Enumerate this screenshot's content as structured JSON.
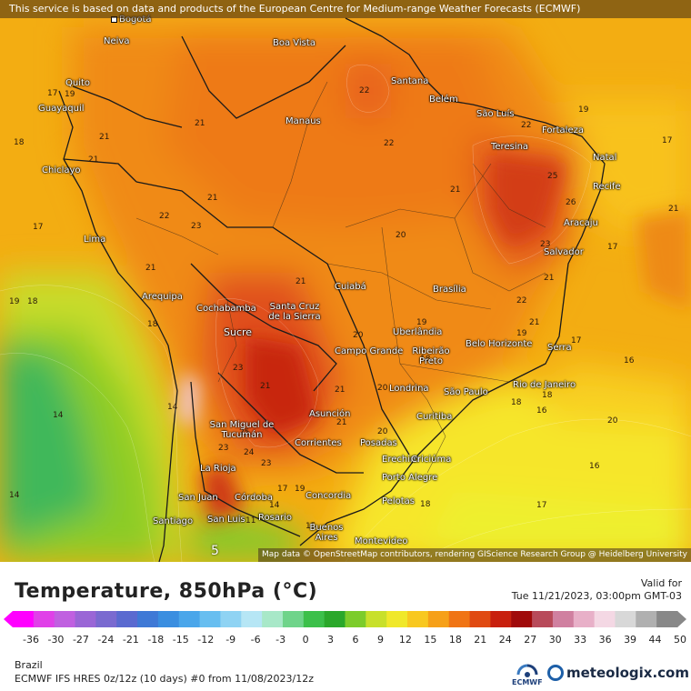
{
  "notice": "This service is based on data and products of the European Centre for Medium-range Weather Forecasts (ECMWF)",
  "attribution": "Map data © OpenStreetMap contributors, rendering GIScience Research Group @ Heidelberg University",
  "title": "Temperature, 850hPa (°C)",
  "valid_label": "Valid for",
  "valid_time": "Tue 11/21/2023, 03:00pm GMT-03",
  "region": "Brazil",
  "model_run": "ECMWF IFS HRES 0z/12z (10 days) #0 from  11/08/2023/12z",
  "logo_ecmwf": "ECMWF",
  "logo_meteologix": "meteologix.com",
  "legend": {
    "ticks": [
      "-36",
      "-30",
      "-27",
      "-24",
      "-21",
      "-18",
      "-15",
      "-12",
      "-9",
      "-6",
      "-3",
      "0",
      "3",
      "6",
      "9",
      "12",
      "15",
      "18",
      "21",
      "24",
      "27",
      "30",
      "33",
      "36",
      "39",
      "44",
      "50"
    ],
    "colors": [
      "#ff00ff",
      "#e040e8",
      "#c060e0",
      "#9a66d6",
      "#7a6ad0",
      "#5a6ad0",
      "#3f79d6",
      "#3a8ee0",
      "#4aa6ea",
      "#67bef0",
      "#8fd3f3",
      "#b6e6f5",
      "#a8e8c8",
      "#6fd48a",
      "#3cc04a",
      "#2aa82a",
      "#7ccc2a",
      "#c8e02a",
      "#f0e82a",
      "#f8c820",
      "#f6a018",
      "#f07414",
      "#e04a12",
      "#c8200e",
      "#a00a0a",
      "#b84a5a",
      "#d080a0",
      "#e8b0c8",
      "#f4d8e4",
      "#d8d8d8",
      "#b0b0b0",
      "#888888"
    ]
  },
  "isotherm_labels": [
    "17",
    "19",
    "21",
    "18",
    "21",
    "21",
    "22",
    "22",
    "19",
    "22",
    "17",
    "21",
    "23",
    "21",
    "22",
    "25",
    "26",
    "21",
    "19",
    "18",
    "18",
    "21",
    "20",
    "17",
    "14",
    "23",
    "23",
    "22",
    "17",
    "21",
    "20",
    "19",
    "21",
    "20",
    "18",
    "18",
    "19",
    "18",
    "14",
    "16",
    "20",
    "25",
    "24",
    "23",
    "17",
    "14",
    "16",
    "18",
    "17",
    "15",
    "11",
    "19",
    "5",
    "14",
    "16",
    "17",
    "21",
    "21",
    "23",
    "21",
    "21",
    "20"
  ],
  "cities": [
    {
      "name": "Bogotá"
    },
    {
      "name": "Neiva"
    },
    {
      "name": "Boa Vista"
    },
    {
      "name": "Quito"
    },
    {
      "name": "Guayaquil"
    },
    {
      "name": "Santana"
    },
    {
      "name": "Belém"
    },
    {
      "name": "São Luís"
    },
    {
      "name": "Manaus"
    },
    {
      "name": "Fortaleza"
    },
    {
      "name": "Teresina"
    },
    {
      "name": "Natal"
    },
    {
      "name": "Chiclayo"
    },
    {
      "name": "Recife"
    },
    {
      "name": "Aracaju"
    },
    {
      "name": "Lima"
    },
    {
      "name": "Salvador"
    },
    {
      "name": "Arequipa"
    },
    {
      "name": "Cuiabá"
    },
    {
      "name": "Brasília"
    },
    {
      "name": "Cochabamba"
    },
    {
      "name": "Santa Cruz de la Sierra"
    },
    {
      "name": "Sucre"
    },
    {
      "name": "Uberlândia"
    },
    {
      "name": "Campo Grande"
    },
    {
      "name": "Ribeirão Preto"
    },
    {
      "name": "Belo Horizonte"
    },
    {
      "name": "Serra"
    },
    {
      "name": "Rio de Janeiro"
    },
    {
      "name": "Londrina"
    },
    {
      "name": "São Paulo"
    },
    {
      "name": "Curitiba"
    },
    {
      "name": "Asunción"
    },
    {
      "name": "San Miguel de Tucumán"
    },
    {
      "name": "Corrientes"
    },
    {
      "name": "Posadas"
    },
    {
      "name": "Erechim"
    },
    {
      "name": "Criciúma"
    },
    {
      "name": "La Rioja"
    },
    {
      "name": "Porto Alegre"
    },
    {
      "name": "San Juan"
    },
    {
      "name": "Córdoba"
    },
    {
      "name": "Concordia"
    },
    {
      "name": "Pelotas"
    },
    {
      "name": "Santiago"
    },
    {
      "name": "San Luis"
    },
    {
      "name": "Rosario"
    },
    {
      "name": "Buenos Aires"
    },
    {
      "name": "Montevideo"
    }
  ]
}
